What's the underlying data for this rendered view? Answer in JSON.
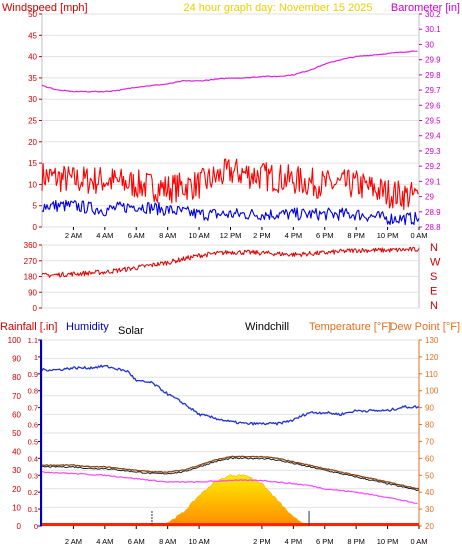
{
  "header": {
    "left": "Windspeed [mph]",
    "center": "24 hour graph day:  November 15 2025",
    "right": "Barometer [in]"
  },
  "colors": {
    "wind_axis": "#cc0000",
    "baro_axis": "#cc00cc",
    "date_title": "#e8d000",
    "wind": "#ff0000",
    "gust_blue": "#0000dd",
    "barometer": "#dd22dd",
    "wind_dir": "#dd0000",
    "humidity": "#2233cc",
    "temperature": "#8a4a1a",
    "dewpoint": "#222222",
    "windchill_line": "#ff44ff",
    "solar_top": "#ffdd00",
    "solar_bottom": "#ff8800",
    "rain_axis": "#cc0000",
    "humidity_axis": "#0000bb",
    "temp_axis": "#e07020"
  },
  "time_ticks": [
    "2 AM",
    "4 AM",
    "6 AM",
    "8 AM",
    "10 AM",
    "12 PM",
    "2 PM",
    "4 PM",
    "6 PM",
    "8 PM",
    "10 PM",
    "0 AM"
  ],
  "bottom_time_ticks": [
    "2 AM",
    "4 AM",
    "6 AM",
    "8 AM",
    "10 AM",
    "2 PM",
    "4 PM",
    "6 PM",
    "8 PM",
    "10 PM",
    "0 AM"
  ],
  "chart_data": [
    {
      "type": "line",
      "left_axis": {
        "label": "Windspeed [mph]",
        "ticks": [
          "0",
          "5",
          "10",
          "15",
          "20",
          "25",
          "30",
          "35",
          "40",
          "45",
          "50"
        ],
        "ylim": [
          0,
          50
        ]
      },
      "right_axis": {
        "label": "Barometer [in]",
        "ticks": [
          "28.8",
          "28.9",
          "29",
          "29.1",
          "29.2",
          "29.3",
          "29.4",
          "29.5",
          "29.6",
          "29.7",
          "29.8",
          "29.9",
          "30",
          "30.1",
          "30.2"
        ],
        "ylim": [
          28.8,
          30.2
        ]
      },
      "xlim_hours": [
        0,
        24
      ],
      "series": [
        {
          "kind": "wind_gust",
          "x": [
            0,
            2,
            4,
            6,
            8,
            10,
            12,
            14,
            16,
            18,
            20,
            22,
            24
          ],
          "y": [
            12,
            11,
            11,
            10,
            9,
            10,
            13,
            12,
            11,
            10,
            10,
            8,
            7
          ]
        },
        {
          "kind": "wind_avg",
          "x": [
            0,
            2,
            4,
            6,
            8,
            10,
            12,
            14,
            16,
            18,
            20,
            22,
            24
          ],
          "y": [
            5,
            5,
            4,
            5,
            4,
            3,
            3,
            3,
            3,
            3,
            3,
            2,
            2
          ]
        },
        {
          "kind": "barometer",
          "x": [
            0,
            1,
            2,
            3,
            4,
            5,
            6,
            7,
            8,
            9,
            10,
            11,
            12,
            13,
            14,
            15,
            16,
            17,
            18,
            19,
            20,
            21,
            22,
            23,
            24
          ],
          "y": [
            29.73,
            29.7,
            29.69,
            29.69,
            29.69,
            29.7,
            29.72,
            29.73,
            29.74,
            29.76,
            29.76,
            29.77,
            29.78,
            29.78,
            29.79,
            29.79,
            29.8,
            29.83,
            29.87,
            29.9,
            29.92,
            29.93,
            29.94,
            29.95,
            29.96
          ]
        }
      ]
    },
    {
      "type": "line",
      "left_axis": {
        "ticks": [
          "0",
          "90",
          "180",
          "270",
          "360"
        ],
        "ylim": [
          0,
          360
        ]
      },
      "right_axis": {
        "ticks": [
          "N",
          "W",
          "S",
          "E",
          "N"
        ]
      },
      "xlim_hours": [
        0,
        24
      ],
      "series": [
        {
          "kind": "wind_direction",
          "x": [
            0,
            2,
            4,
            6,
            8,
            10,
            12,
            14,
            16,
            18,
            20,
            22,
            24
          ],
          "y": [
            185,
            195,
            205,
            230,
            260,
            300,
            320,
            315,
            305,
            315,
            330,
            330,
            335
          ]
        }
      ]
    },
    {
      "type": "line",
      "legend": {
        "rainfall": "Rainfall [.in]",
        "humidity": "Humidity",
        "solar": "Solar",
        "windchill": "Windchill",
        "temperature": "Temperature [°F]",
        "dewpoint": "Dew Point [°F]"
      },
      "left_axis": {
        "ticks": [
          "0",
          "10",
          "20",
          "30",
          "40",
          "50",
          "60",
          "70",
          "80",
          "90",
          "100"
        ],
        "ylim": [
          0,
          100
        ]
      },
      "rain_axis": {
        "ticks": [
          "0",
          "0.1",
          "0.2",
          "0.3",
          "0.4",
          "0.5",
          "0.6",
          "0.7",
          "0.8",
          "0.9",
          "1",
          "1.1"
        ],
        "ylim": [
          0,
          1.1
        ]
      },
      "right_axis": {
        "ticks": [
          "20",
          "30",
          "40",
          "50",
          "60",
          "70",
          "80",
          "90",
          "100",
          "110",
          "120",
          "130"
        ],
        "ylim": [
          20,
          130
        ]
      },
      "xlim_hours": [
        0,
        24
      ],
      "series": [
        {
          "kind": "humidity",
          "x": [
            0,
            1,
            2,
            3,
            4,
            5,
            5.5,
            6,
            7,
            8,
            9,
            10,
            11,
            12,
            13,
            14,
            15,
            16,
            17,
            18,
            19,
            20,
            21,
            22,
            23,
            24
          ],
          "y": [
            84,
            84,
            85,
            85,
            86,
            84,
            83,
            78,
            77,
            71,
            66,
            60,
            58,
            56,
            55,
            55,
            55,
            57,
            61,
            61,
            60,
            62,
            62,
            62,
            64,
            64
          ]
        },
        {
          "kind": "temperature",
          "x": [
            0,
            1,
            2,
            3,
            4,
            5,
            6,
            7,
            8,
            9,
            10,
            11,
            12,
            13,
            14,
            15,
            16,
            17,
            18,
            19,
            20,
            21,
            22,
            23,
            24
          ],
          "y": [
            56,
            56,
            56,
            55,
            55,
            54,
            53,
            52,
            52,
            53,
            56,
            59,
            61,
            61,
            61,
            60,
            58,
            56,
            54,
            52,
            50,
            48,
            46,
            44,
            42
          ]
        },
        {
          "kind": "dewpoint",
          "x": [
            0,
            1,
            2,
            3,
            4,
            5,
            6,
            7,
            8,
            9,
            10,
            11,
            12,
            13,
            14,
            15,
            16,
            17,
            18,
            19,
            20,
            21,
            22,
            23,
            24
          ],
          "y": [
            55,
            55,
            55,
            54,
            54,
            53,
            52,
            51,
            51,
            52,
            55,
            58,
            60,
            60,
            60,
            59,
            57,
            55,
            53,
            51,
            49,
            47,
            45,
            43,
            41
          ]
        },
        {
          "kind": "windchill",
          "x": [
            0,
            2,
            4,
            6,
            8,
            10,
            12,
            14,
            16,
            17,
            18,
            20,
            22,
            24
          ],
          "y": [
            52,
            51,
            50,
            48,
            46,
            46,
            47,
            47,
            45,
            44,
            42,
            40,
            37,
            33
          ]
        },
        {
          "kind": "solar",
          "x": [
            7,
            8,
            9,
            10,
            11,
            12,
            13,
            14,
            15,
            16,
            17
          ],
          "y": [
            0,
            2,
            8,
            18,
            26,
            30,
            30,
            25,
            15,
            5,
            0
          ]
        }
      ]
    }
  ]
}
